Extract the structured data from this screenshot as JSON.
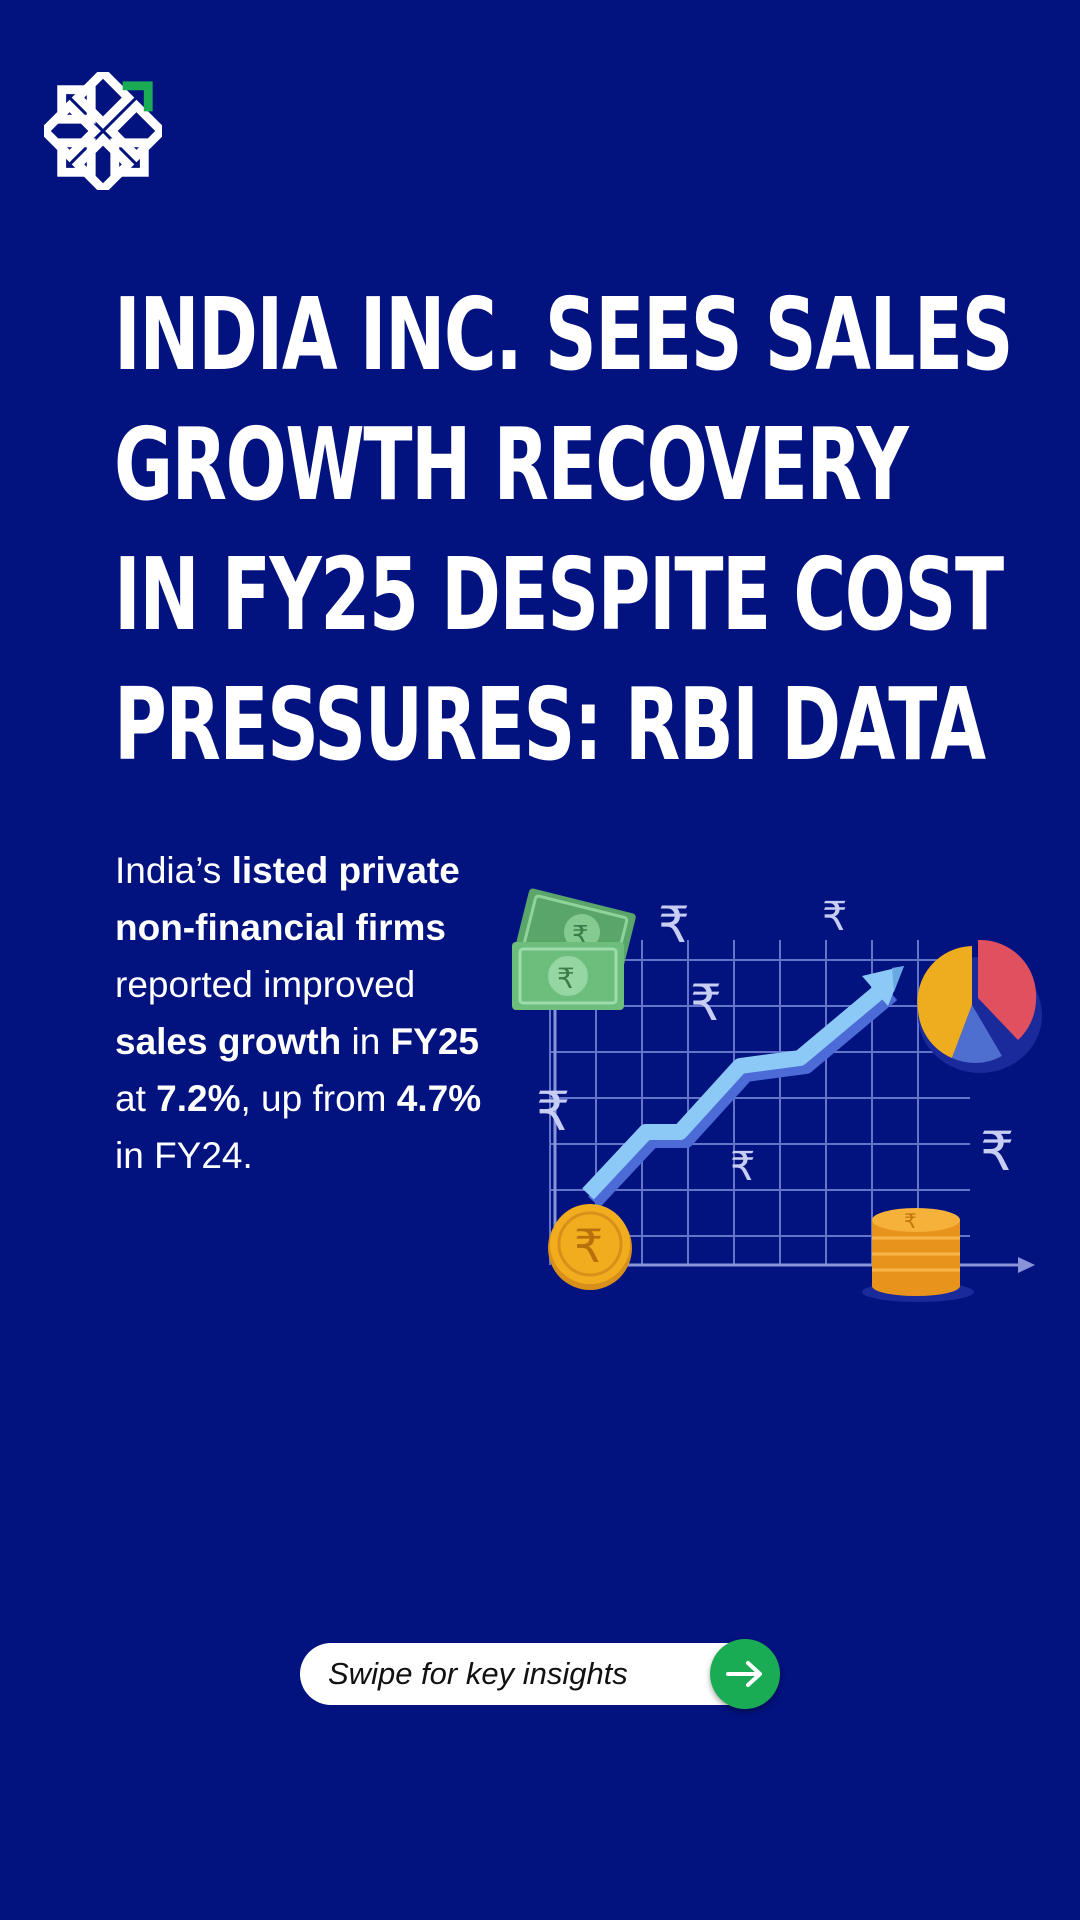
{
  "headline": {
    "lines": [
      "INDIA INC. SEES SALES",
      "GROWTH RECOVERY",
      "IN FY25 DESPITE COST",
      "PRESSURES: RBI DATA"
    ]
  },
  "body": {
    "p1": "India’s ",
    "b1": "listed private non-financial firms",
    "p2": " reported improved ",
    "b2": "sales growth",
    "p3": " in ",
    "b3": "FY25",
    "p4": " at ",
    "b4": "7.2%",
    "p5": ", up from ",
    "b5": "4.7%",
    "p6": " in FY24."
  },
  "illustration": {
    "rupee_symbol": "₹",
    "colors": {
      "arrow": "#8cc9f6",
      "grid": "#6f7fd0",
      "coin": "#f2ad1f",
      "pie_red": "#e0505f",
      "pie_yellow": "#eeac1f",
      "pie_blue": "#4e6fcf",
      "banknote": "#6dbe7d"
    }
  },
  "cta": {
    "label": "Swipe for key insights",
    "icon": "arrow-right-icon",
    "color": "#1aab55"
  },
  "brand": {
    "logo_icon": "flower-logo-icon",
    "accent": "#1aab55",
    "background": "#02127f"
  }
}
